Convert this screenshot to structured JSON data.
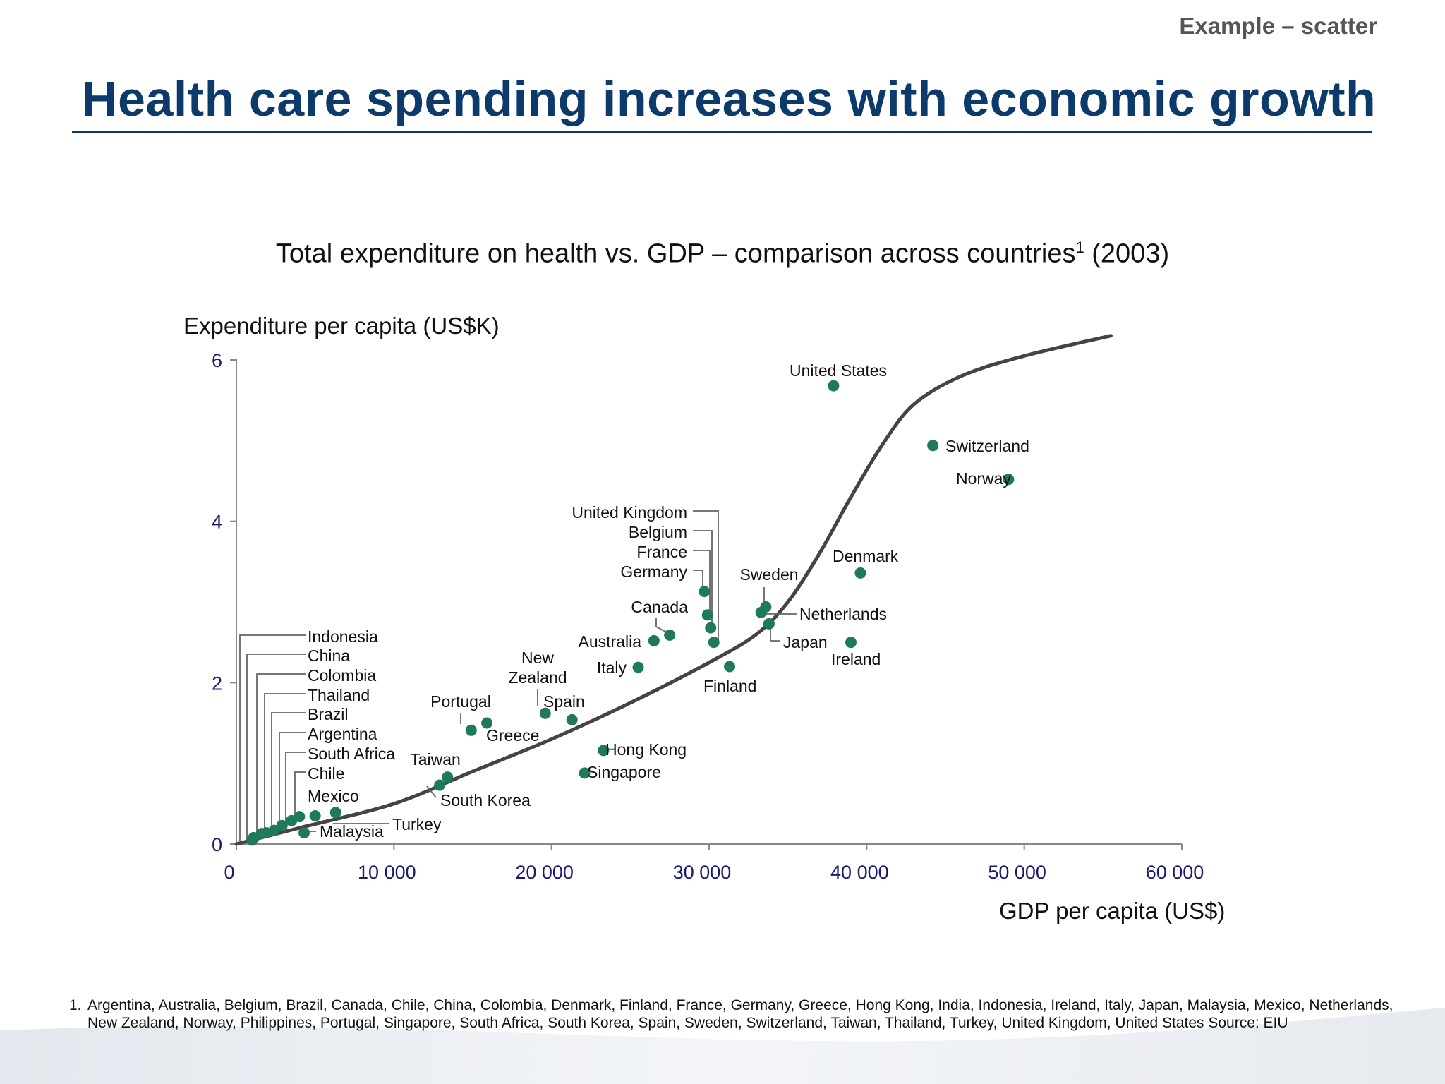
{
  "header": {
    "example_tag": "Example – scatter",
    "title": "Health care spending increases with economic growth"
  },
  "chart_data": {
    "type": "scatter",
    "title": "Total expenditure on health vs. GDP – comparison across countries",
    "title_superscript": "1",
    "title_suffix": " (2003)",
    "xlabel": "GDP per capita (US$)",
    "ylabel": "Expenditure per capita (US$K)",
    "xlim": [
      0,
      60000
    ],
    "ylim": [
      0,
      6
    ],
    "xticks": [
      0,
      10000,
      20000,
      30000,
      40000,
      50000,
      60000
    ],
    "xtick_labels": [
      "0",
      "10 000",
      "20 000",
      "30 000",
      "40 000",
      "50 000",
      "60 000"
    ],
    "yticks": [
      0,
      2,
      4,
      6
    ],
    "ytick_labels": [
      "0",
      "2",
      "4",
      "6"
    ],
    "grid": false,
    "marker_color": "#1e7a5a",
    "curve_color": "#444444",
    "points": [
      {
        "name": "United States",
        "x": 37900,
        "y": 5.68
      },
      {
        "name": "Switzerland",
        "x": 44200,
        "y": 4.94
      },
      {
        "name": "Norway",
        "x": 49000,
        "y": 4.52
      },
      {
        "name": "Denmark",
        "x": 39600,
        "y": 3.36
      },
      {
        "name": "Ireland",
        "x": 39000,
        "y": 2.5
      },
      {
        "name": "Sweden",
        "x": 33600,
        "y": 2.94
      },
      {
        "name": "Netherlands",
        "x": 33300,
        "y": 2.87
      },
      {
        "name": "Japan",
        "x": 33800,
        "y": 2.73
      },
      {
        "name": "Finland",
        "x": 31300,
        "y": 2.2
      },
      {
        "name": "United Kingdom",
        "x": 30300,
        "y": 2.5
      },
      {
        "name": "Belgium",
        "x": 30100,
        "y": 2.68
      },
      {
        "name": "France",
        "x": 29900,
        "y": 2.84
      },
      {
        "name": "Germany",
        "x": 29700,
        "y": 3.13
      },
      {
        "name": "Canada",
        "x": 27500,
        "y": 2.59
      },
      {
        "name": "Australia",
        "x": 26500,
        "y": 2.52
      },
      {
        "name": "Italy",
        "x": 25500,
        "y": 2.19
      },
      {
        "name": "New Zealand",
        "x": 19600,
        "y": 1.62
      },
      {
        "name": "Spain",
        "x": 21300,
        "y": 1.54
      },
      {
        "name": "Greece",
        "x": 15900,
        "y": 1.5
      },
      {
        "name": "Portugal",
        "x": 14900,
        "y": 1.41
      },
      {
        "name": "Hong Kong",
        "x": 23300,
        "y": 1.16
      },
      {
        "name": "Singapore",
        "x": 22100,
        "y": 0.88
      },
      {
        "name": "Taiwan",
        "x": 13400,
        "y": 0.83
      },
      {
        "name": "South Korea",
        "x": 12900,
        "y": 0.73
      },
      {
        "name": "Turkey",
        "x": 6300,
        "y": 0.39
      },
      {
        "name": "Malaysia",
        "x": 4300,
        "y": 0.14
      },
      {
        "name": "Mexico",
        "x": 5000,
        "y": 0.35
      },
      {
        "name": "Chile",
        "x": 4000,
        "y": 0.34
      },
      {
        "name": "South Africa",
        "x": 3500,
        "y": 0.29
      },
      {
        "name": "Argentina",
        "x": 2900,
        "y": 0.23
      },
      {
        "name": "Brazil",
        "x": 2400,
        "y": 0.17
      },
      {
        "name": "Thailand",
        "x": 1900,
        "y": 0.14
      },
      {
        "name": "Colombia",
        "x": 1600,
        "y": 0.13
      },
      {
        "name": "China",
        "x": 1100,
        "y": 0.08
      },
      {
        "name": "Indonesia",
        "x": 1000,
        "y": 0.05
      }
    ],
    "trend_curve": [
      [
        0,
        0.0
      ],
      [
        4000,
        0.2
      ],
      [
        10000,
        0.5
      ],
      [
        15000,
        0.9
      ],
      [
        20000,
        1.3
      ],
      [
        25000,
        1.75
      ],
      [
        30000,
        2.25
      ],
      [
        33000,
        2.6
      ],
      [
        35000,
        3.0
      ],
      [
        37000,
        3.6
      ],
      [
        39000,
        4.3
      ],
      [
        41000,
        4.95
      ],
      [
        43000,
        5.45
      ],
      [
        46000,
        5.8
      ],
      [
        50000,
        6.05
      ],
      [
        55500,
        6.3
      ]
    ]
  },
  "footnote": {
    "number": "1.",
    "text": "Argentina, Australia, Belgium, Brazil, Canada, Chile, China, Colombia, Denmark, Finland, France, Germany, Greece, Hong Kong, India, Indonesia, Ireland, Italy, Japan, Malaysia, Mexico, Netherlands, New Zealand, Norway, Philippines, Portugal, Singapore, South Africa, South Korea, Spain, Sweden, Switzerland, Taiwan, Thailand, Turkey, United Kingdom, United States Source: EIU"
  }
}
